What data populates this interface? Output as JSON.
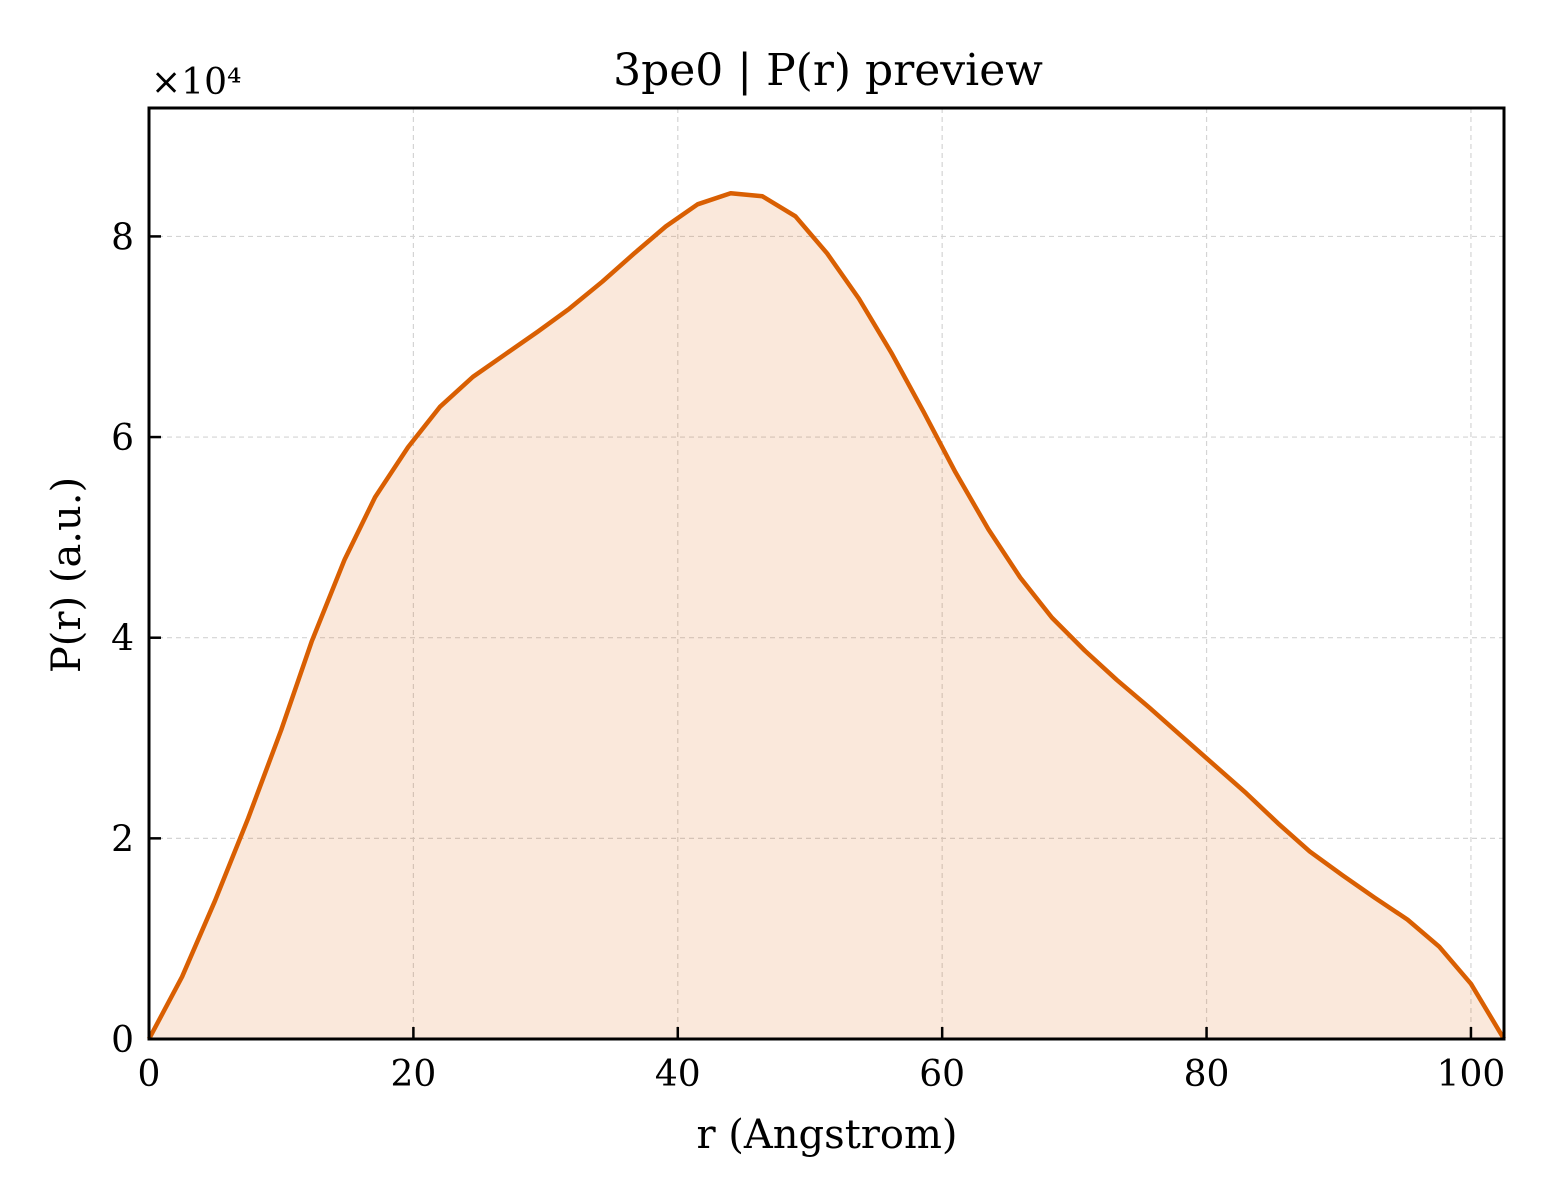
{
  "chart_data": {
    "type": "area",
    "title": "3pe0 | P(r) preview",
    "xlabel": "r (Angstrom)",
    "ylabel": "P(r) (a.u.)",
    "y_multiplier_label": "×10⁴",
    "x_ticks": [
      "0",
      "20",
      "40",
      "60",
      "80",
      "100"
    ],
    "y_ticks": [
      "0",
      "2",
      "4",
      "6",
      "8"
    ],
    "xlim": [
      0,
      102.5
    ],
    "ylim": [
      0,
      92800
    ],
    "grid": true,
    "line_color": "#d95f02",
    "fill_color": "#d95f02",
    "series": [
      {
        "x": [
          0,
          2.5,
          5,
          7.5,
          10,
          12.3,
          14.8,
          17.1,
          19.6,
          22,
          24.5,
          27,
          29.4,
          31.8,
          34.3,
          36.7,
          39.1,
          41.5,
          44,
          46.4,
          48.9,
          51.3,
          53.7,
          56.2,
          58.6,
          61,
          63.5,
          65.9,
          68.3,
          70.8,
          73.2,
          75.7,
          78.1,
          80.5,
          83,
          85.4,
          87.8,
          90.3,
          92.7,
          95.2,
          97.6,
          100,
          102.5
        ],
        "y": [
          0,
          6200,
          13800,
          22000,
          30800,
          39600,
          47800,
          54000,
          59000,
          63000,
          66000,
          68300,
          70500,
          72800,
          75500,
          78300,
          81000,
          83200,
          84300,
          84000,
          82000,
          78300,
          73800,
          68300,
          62500,
          56500,
          50800,
          46000,
          42000,
          38700,
          35800,
          33000,
          30200,
          27400,
          24500,
          21500,
          18700,
          16300,
          14100,
          11900,
          9200,
          5500,
          0
        ]
      }
    ]
  }
}
